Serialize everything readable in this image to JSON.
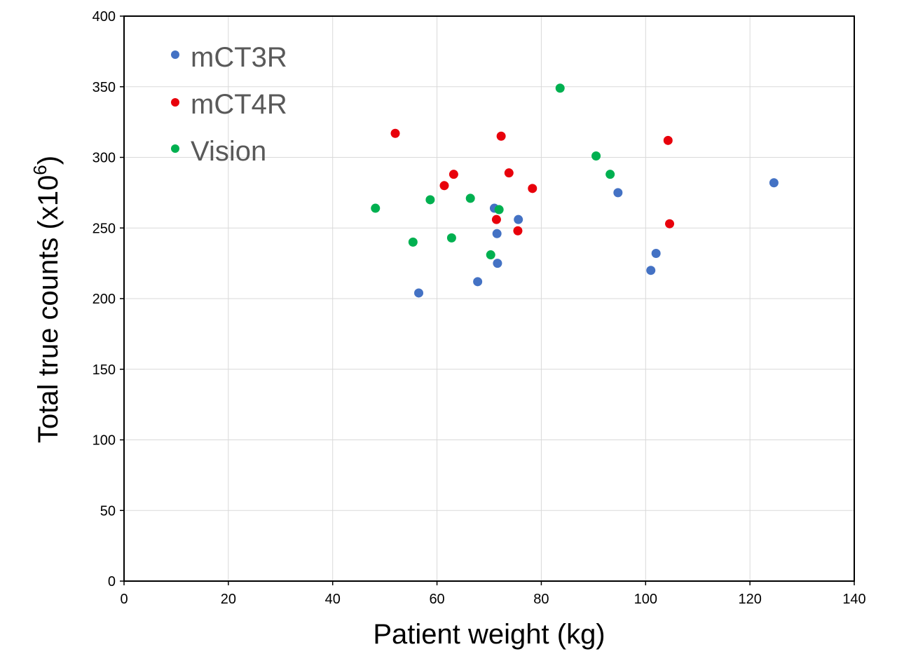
{
  "chart_data": {
    "type": "scatter",
    "title": "",
    "xlabel": "Patient weight (kg)",
    "ylabel_main": "Total true counts (x10",
    "ylabel_sup": "6",
    "ylabel_end": ")",
    "xlim": [
      0,
      140
    ],
    "ylim": [
      0,
      400
    ],
    "xticks": [
      0,
      20,
      40,
      60,
      80,
      100,
      120,
      140
    ],
    "yticks": [
      0,
      50,
      100,
      150,
      200,
      250,
      300,
      350,
      400
    ],
    "grid": true,
    "legend_position": "top-left",
    "series": [
      {
        "name": "mCT3R",
        "color": "#4472c4",
        "points": [
          {
            "x": 56.5,
            "y": 204
          },
          {
            "x": 67.8,
            "y": 212
          },
          {
            "x": 71.0,
            "y": 264
          },
          {
            "x": 71.5,
            "y": 246
          },
          {
            "x": 71.6,
            "y": 225
          },
          {
            "x": 75.6,
            "y": 256
          },
          {
            "x": 94.7,
            "y": 275
          },
          {
            "x": 101.0,
            "y": 220
          },
          {
            "x": 102.0,
            "y": 232
          },
          {
            "x": 124.6,
            "y": 282
          }
        ]
      },
      {
        "name": "mCT4R",
        "color": "#e8000b",
        "points": [
          {
            "x": 52.0,
            "y": 317
          },
          {
            "x": 61.4,
            "y": 280
          },
          {
            "x": 63.2,
            "y": 288
          },
          {
            "x": 71.4,
            "y": 256
          },
          {
            "x": 72.3,
            "y": 315
          },
          {
            "x": 73.8,
            "y": 289
          },
          {
            "x": 75.5,
            "y": 248
          },
          {
            "x": 78.3,
            "y": 278
          },
          {
            "x": 104.3,
            "y": 312
          },
          {
            "x": 104.6,
            "y": 253
          }
        ]
      },
      {
        "name": "Vision",
        "color": "#00b050",
        "points": [
          {
            "x": 48.2,
            "y": 264
          },
          {
            "x": 55.4,
            "y": 240
          },
          {
            "x": 58.7,
            "y": 270
          },
          {
            "x": 62.8,
            "y": 243
          },
          {
            "x": 66.4,
            "y": 271
          },
          {
            "x": 70.3,
            "y": 231
          },
          {
            "x": 71.9,
            "y": 263
          },
          {
            "x": 83.6,
            "y": 349
          },
          {
            "x": 90.5,
            "y": 301
          },
          {
            "x": 93.2,
            "y": 288
          }
        ]
      }
    ]
  }
}
